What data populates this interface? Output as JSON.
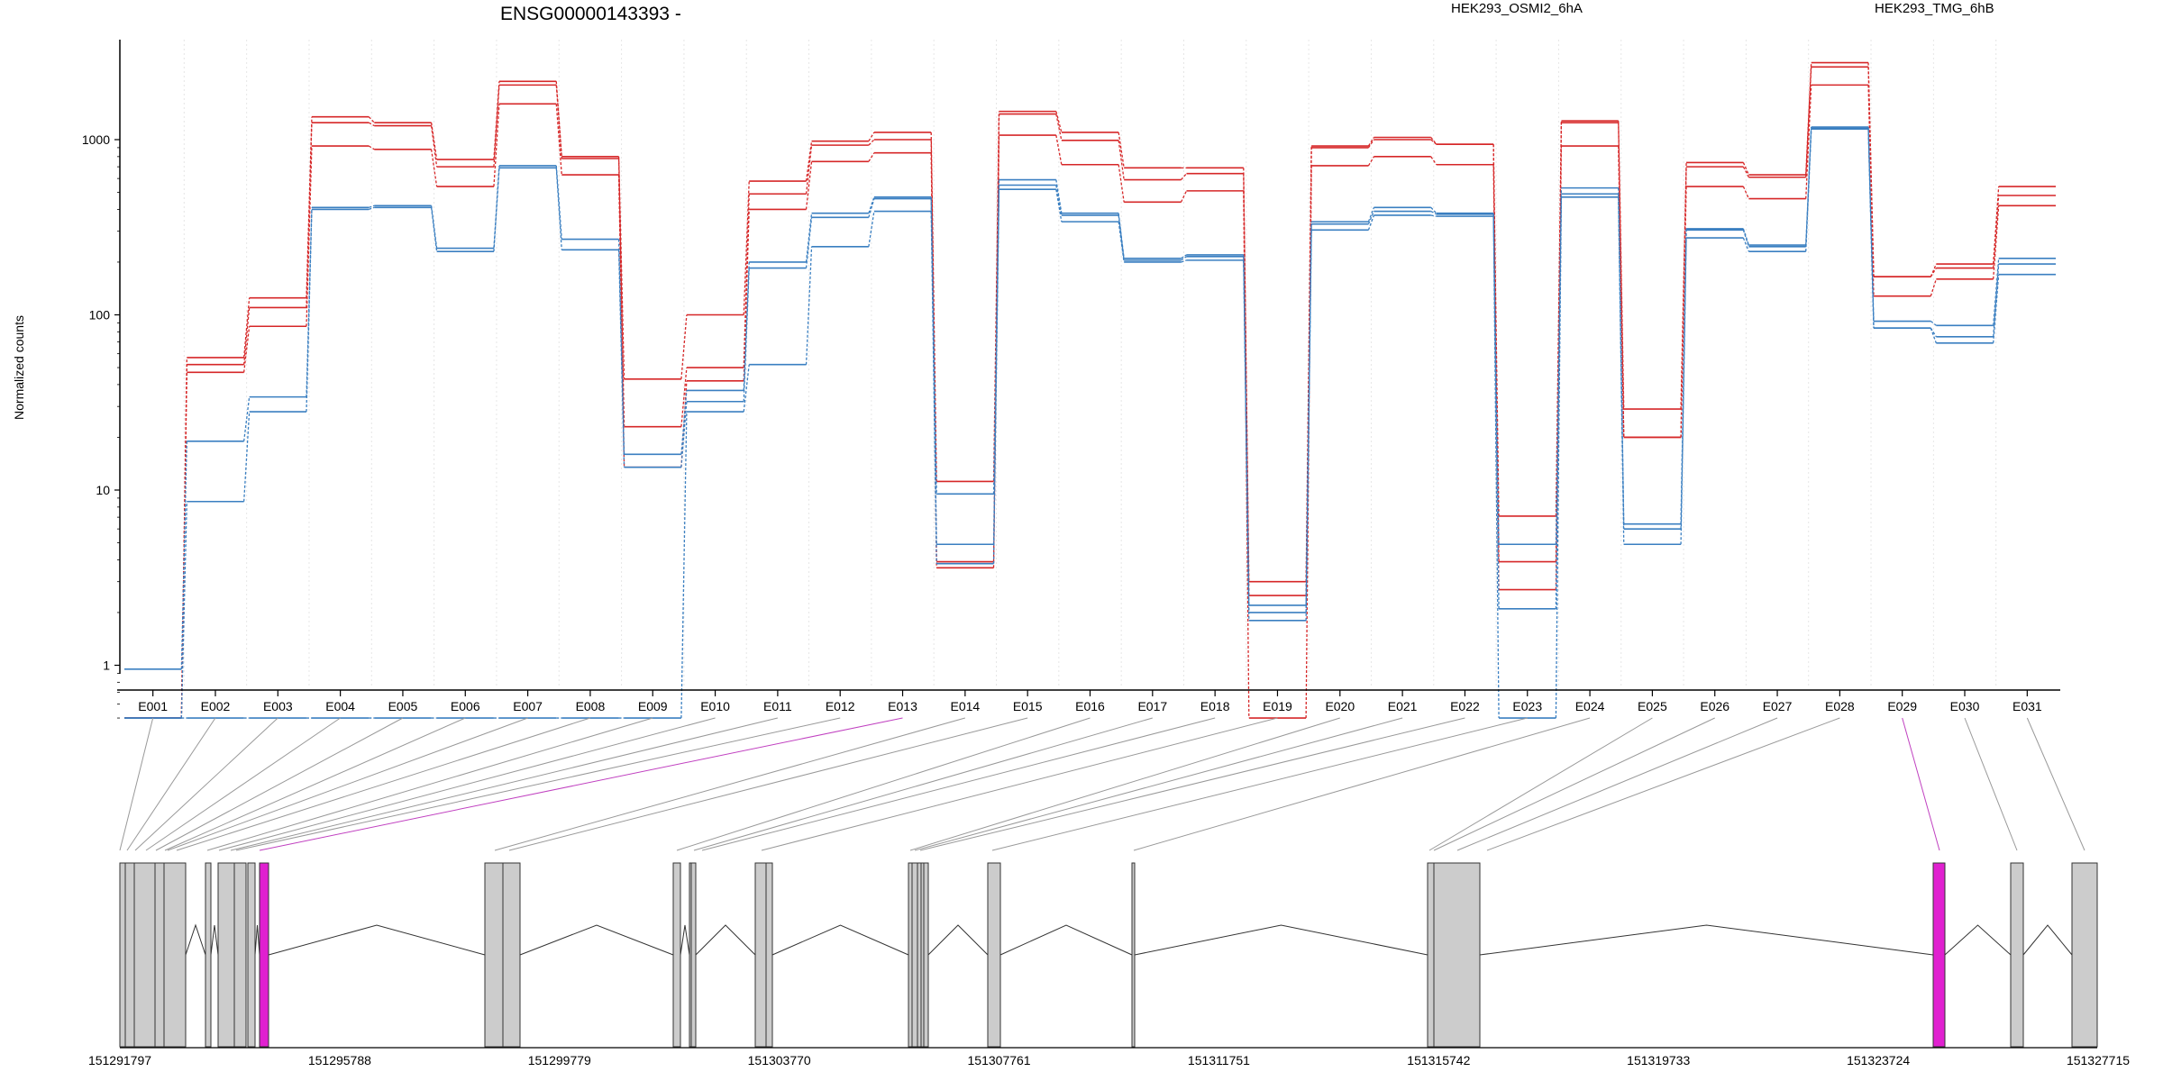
{
  "chart_data": {
    "type": "line",
    "title": "ENSG00000143393 -",
    "ylabel": "Normalized counts",
    "y_scale": "log",
    "y_ticks": [
      1,
      10,
      100,
      1000
    ],
    "y_tick_labels": [
      "1",
      "10",
      "100",
      "1000"
    ],
    "grid": "vertical dotted lines at exon boundaries",
    "categories": [
      "E001",
      "E002",
      "E003",
      "E004",
      "E005",
      "E006",
      "E007",
      "E008",
      "E009",
      "E010",
      "E011",
      "E012",
      "E013",
      "E014",
      "E015",
      "E016",
      "E017",
      "E018",
      "E019",
      "E020",
      "E021",
      "E022",
      "E023",
      "E024",
      "E025",
      "E026",
      "E027",
      "E028",
      "E029",
      "E030",
      "E031"
    ],
    "legend": [
      {
        "name": "HEK293_OSMI2_6hA",
        "color": "#d62728",
        "position": "top-center"
      },
      {
        "name": "HEK293_TMG_6hB",
        "color": "#3a7fc1",
        "position": "top-right"
      }
    ],
    "series": [
      {
        "group": "HEK293_OSMI2_6hA",
        "color": "#d62728",
        "values": [
          0.5,
          57,
          125,
          1350,
          1250,
          770,
          2150,
          800,
          43,
          100,
          580,
          980,
          1100,
          11.2,
          1450,
          1100,
          690,
          690,
          3.0,
          920,
          1030,
          940,
          7.1,
          1280,
          29,
          740,
          630,
          2750,
          165,
          195,
          540
        ]
      },
      {
        "group": "HEK293_OSMI2_6hA",
        "color": "#d62728",
        "values": [
          0.5,
          52,
          110,
          1250,
          1200,
          700,
          2050,
          780,
          23,
          50,
          490,
          930,
          1000,
          3.9,
          1400,
          990,
          590,
          640,
          2.5,
          900,
          1000,
          940,
          3.9,
          1250,
          20,
          700,
          610,
          2600,
          165,
          185,
          480
        ]
      },
      {
        "group": "HEK293_OSMI2_6hA",
        "color": "#d62728",
        "values": [
          0.5,
          47,
          86,
          920,
          880,
          540,
          1600,
          630,
          13.5,
          42,
          400,
          750,
          840,
          3.6,
          1060,
          720,
          440,
          510,
          0.5,
          710,
          800,
          720,
          2.7,
          920,
          20,
          540,
          460,
          2050,
          128,
          160,
          420
        ]
      },
      {
        "group": "HEK293_TMG_6hB",
        "color": "#3a7fc1",
        "values": [
          0.95,
          19,
          34,
          410,
          420,
          240,
          710,
          270,
          16,
          37,
          200,
          380,
          470,
          9.5,
          590,
          380,
          210,
          220,
          2.2,
          340,
          410,
          380,
          4.9,
          530,
          6.4,
          310,
          250,
          1180,
          92,
          87,
          210
        ]
      },
      {
        "group": "HEK293_TMG_6hB",
        "color": "#3a7fc1",
        "values": [
          0.5,
          8.6,
          28,
          400,
          410,
          230,
          690,
          235,
          13.5,
          32,
          185,
          360,
          460,
          4.9,
          550,
          370,
          205,
          215,
          2.0,
          330,
          390,
          375,
          2.1,
          490,
          6.0,
          305,
          245,
          1160,
          84,
          75,
          195
        ]
      },
      {
        "group": "HEK293_TMG_6hB",
        "color": "#3a7fc1",
        "values": [
          0.5,
          0.5,
          0.5,
          0.5,
          0.5,
          0.5,
          0.5,
          0.5,
          0.5,
          28,
          52,
          245,
          390,
          3.8,
          520,
          340,
          200,
          205,
          1.8,
          305,
          370,
          365,
          0.5,
          470,
          4.9,
          275,
          230,
          1150,
          84,
          69,
          170
        ]
      }
    ],
    "gene_model": {
      "coordinate_ticks": [
        "151291797",
        "151295788",
        "151299779",
        "151303770",
        "151307761",
        "151311751",
        "151315742",
        "151319733",
        "151323724",
        "151327715"
      ],
      "highlight_color": "#e020d0",
      "highlighted_exons": [
        "E013",
        "E029"
      ]
    }
  }
}
